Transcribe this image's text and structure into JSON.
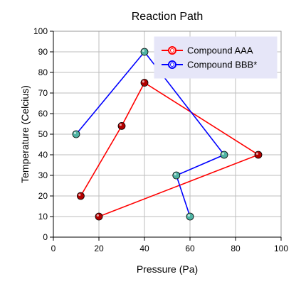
{
  "chart_data": {
    "type": "line",
    "title": "Reaction Path",
    "xlabel": "Pressure (Pa)",
    "ylabel": "Temperature (Celcius)",
    "xlim": [
      0,
      100
    ],
    "ylim": [
      0,
      100
    ],
    "x_ticks": [
      0,
      20,
      40,
      60,
      80,
      100
    ],
    "y_ticks": [
      0,
      10,
      20,
      30,
      40,
      50,
      60,
      70,
      80,
      90,
      100
    ],
    "grid": true,
    "legend_position": "top-right",
    "plot_background": "#ffffff",
    "legend_background": "#e6e6f8",
    "series": [
      {
        "name": "Compound AAA",
        "line_color": "#ff0000",
        "marker_color": "#b30000",
        "marker_shape": "circle",
        "points": [
          {
            "x": 12,
            "y": 20
          },
          {
            "x": 30,
            "y": 54
          },
          {
            "x": 40,
            "y": 75
          },
          {
            "x": 90,
            "y": 40
          },
          {
            "x": 20,
            "y": 10
          }
        ]
      },
      {
        "name": "Compound BBB*",
        "line_color": "#0000ff",
        "marker_color": "#4fb3a3",
        "marker_shape": "circle",
        "points": [
          {
            "x": 10,
            "y": 50
          },
          {
            "x": 40,
            "y": 90
          },
          {
            "x": 75,
            "y": 40
          },
          {
            "x": 54,
            "y": 30
          },
          {
            "x": 60,
            "y": 10
          }
        ]
      }
    ]
  }
}
